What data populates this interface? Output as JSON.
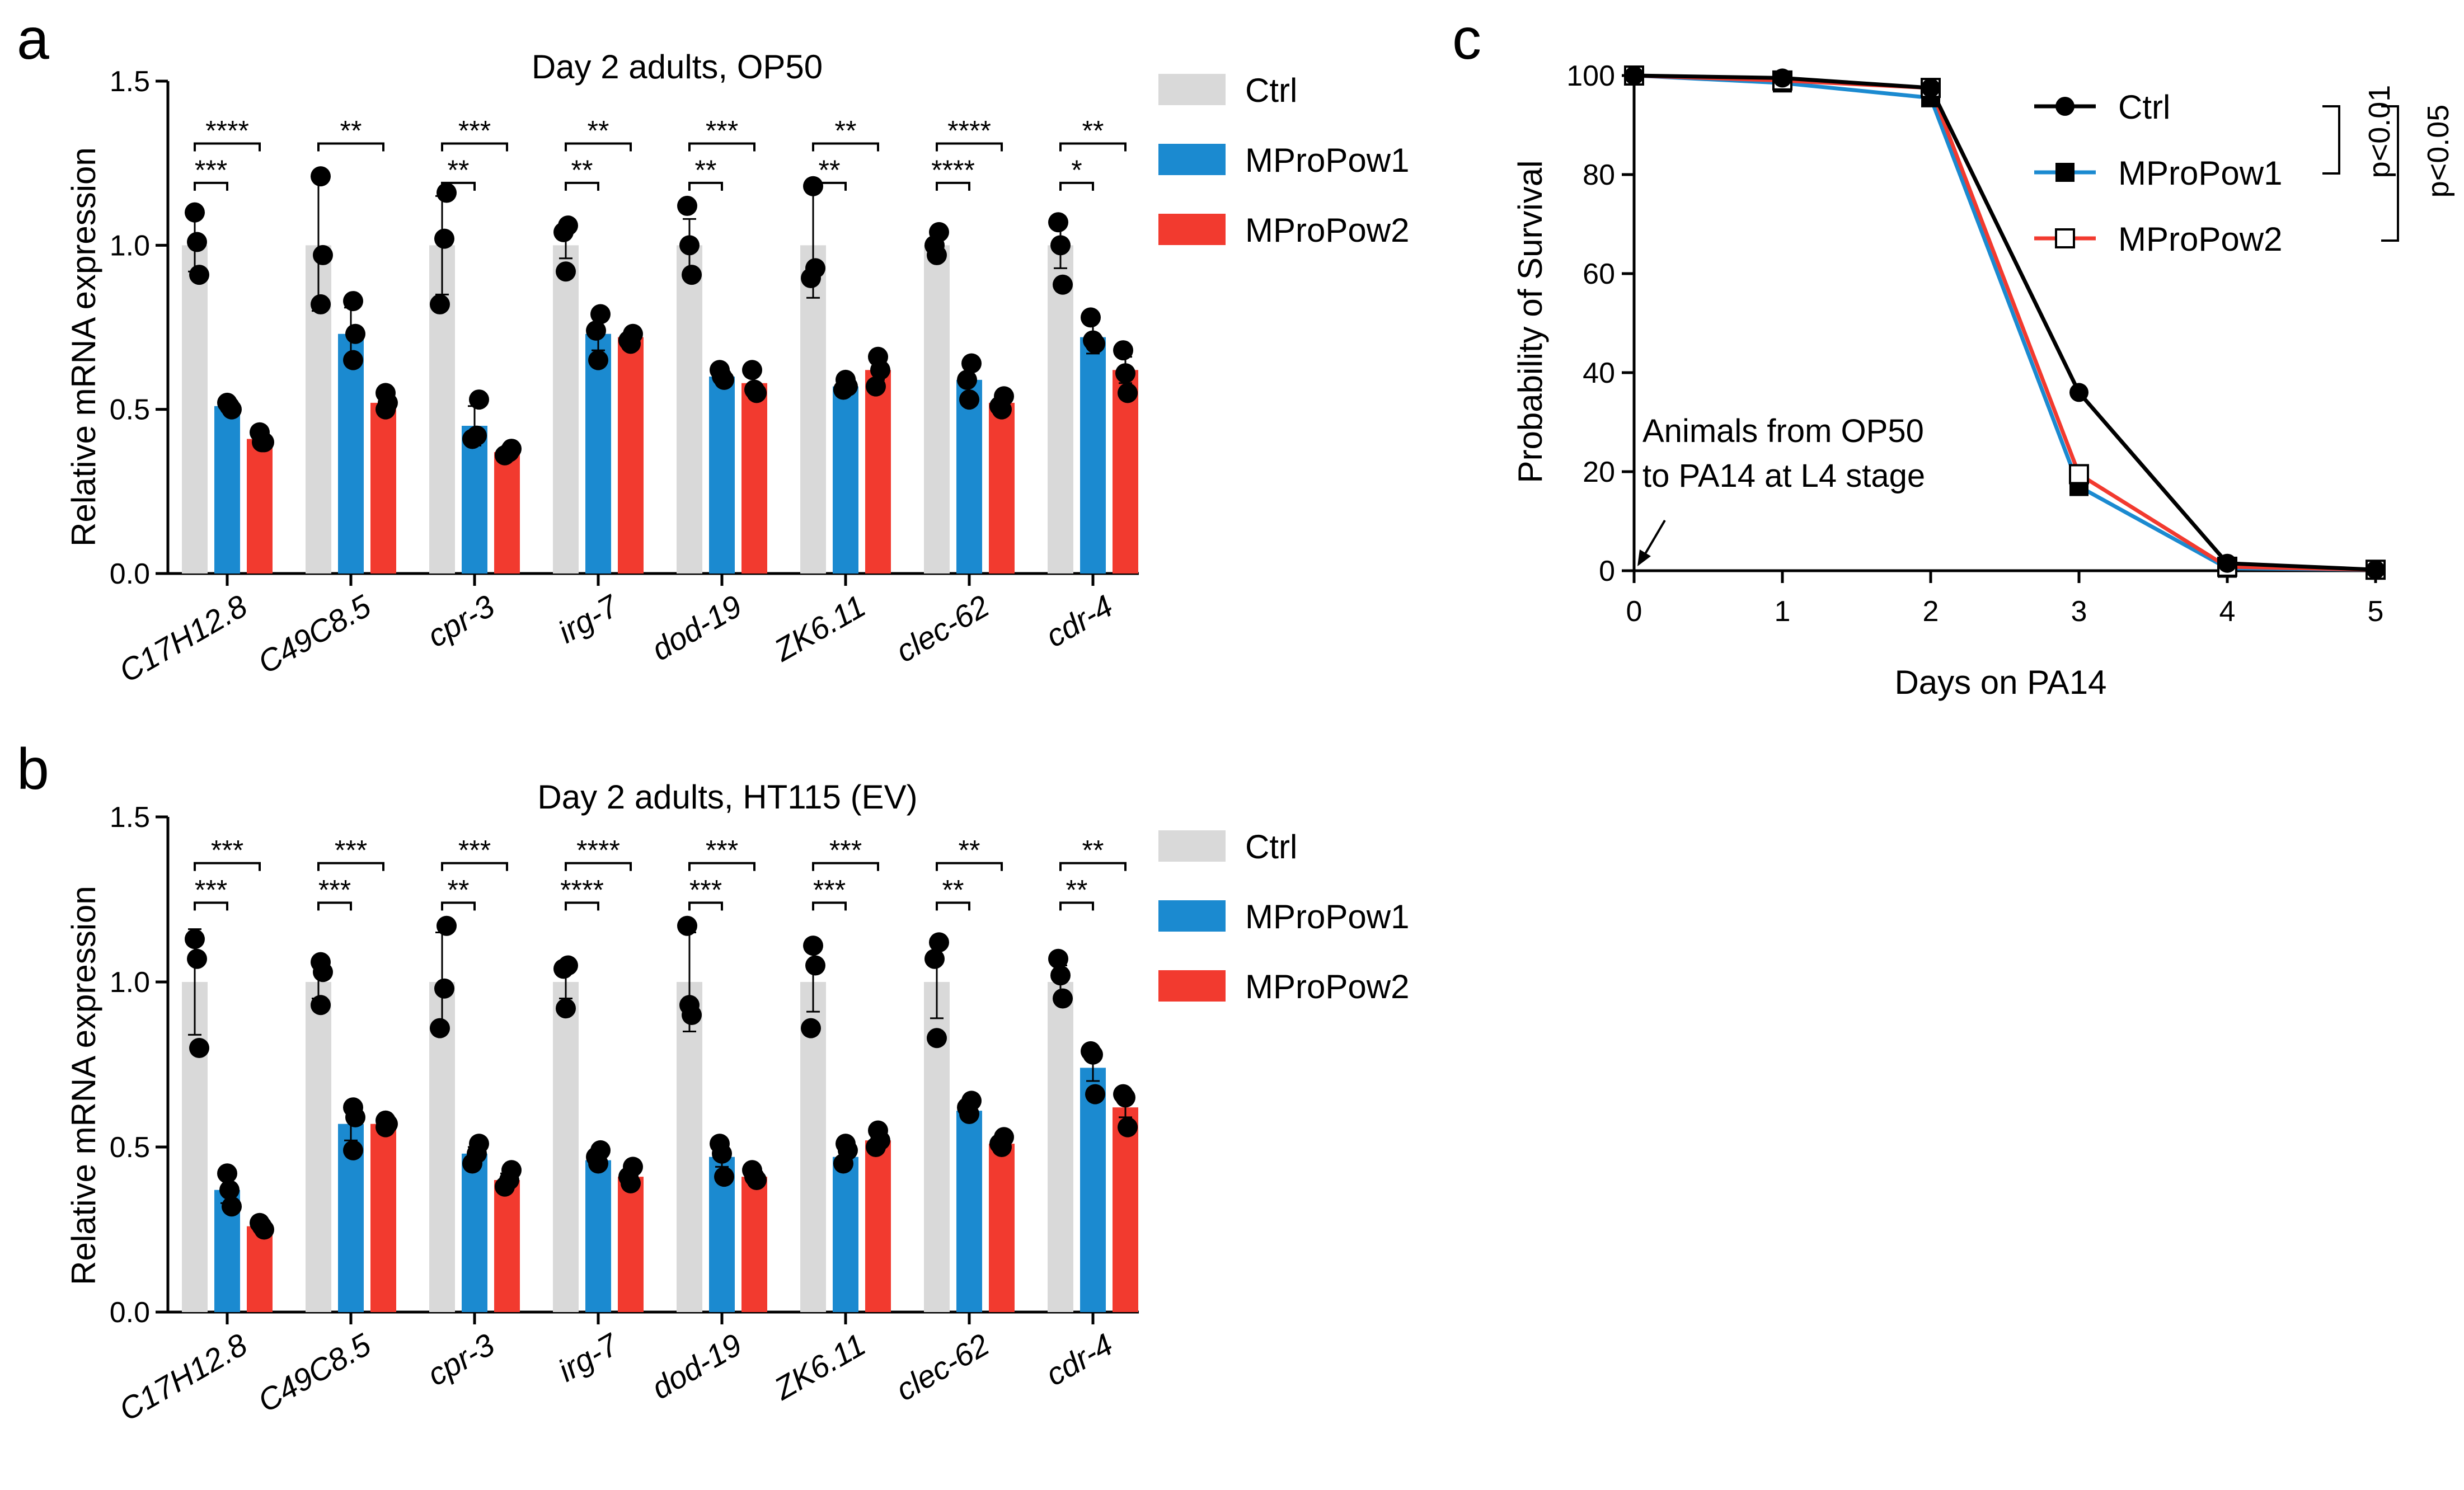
{
  "colors": {
    "ctrl": "#d9d9d9",
    "mpro1": "#1b8ad0",
    "mpro2": "#f23a2f",
    "axis": "#000000",
    "dot": "#000000"
  },
  "chart_data": [
    {
      "type": "bar",
      "panel": "a",
      "title": "Day 2 adults, OP50",
      "xlabel": "",
      "ylabel": "Relative mRNA expression",
      "ylim": [
        0,
        1.5
      ],
      "yticks": [
        "0.0",
        "0.5",
        "1.0",
        "1.5"
      ],
      "legend": [
        "Ctrl",
        "MProPow1",
        "MProPow2"
      ],
      "categories": [
        "C17H12.8",
        "C49C8.5",
        "cpr-3",
        "irg-7",
        "dod-19",
        "ZK6.11",
        "clec-62",
        "cdr-4"
      ],
      "series": [
        {
          "name": "Ctrl",
          "values": [
            1.0,
            1.0,
            1.0,
            1.0,
            1.0,
            1.0,
            1.0,
            1.0
          ],
          "err": [
            0.08,
            0.2,
            0.15,
            0.04,
            0.08,
            0.16,
            0.03,
            0.07
          ]
        },
        {
          "name": "MProPow1",
          "values": [
            0.51,
            0.73,
            0.45,
            0.73,
            0.6,
            0.57,
            0.59,
            0.72
          ],
          "err": [
            0.01,
            0.08,
            0.06,
            0.05,
            0.02,
            0.02,
            0.04,
            0.05
          ]
        },
        {
          "name": "MProPow2",
          "values": [
            0.41,
            0.52,
            0.37,
            0.72,
            0.58,
            0.62,
            0.52,
            0.62
          ],
          "err": [
            0.02,
            0.03,
            0.01,
            0.02,
            0.03,
            0.03,
            0.02,
            0.04
          ]
        }
      ],
      "points": [
        [
          [
            1.1,
            1.01,
            0.91
          ],
          [
            0.52,
            0.51,
            0.5
          ],
          [
            0.43,
            0.4,
            0.4
          ]
        ],
        [
          [
            1.21,
            0.97,
            0.82
          ],
          [
            0.83,
            0.73,
            0.65
          ],
          [
            0.55,
            0.52,
            0.5
          ]
        ],
        [
          [
            1.16,
            1.02,
            0.82
          ],
          [
            0.53,
            0.42,
            0.41
          ],
          [
            0.38,
            0.37,
            0.36
          ]
        ],
        [
          [
            1.06,
            1.04,
            0.92
          ],
          [
            0.79,
            0.74,
            0.65
          ],
          [
            0.73,
            0.71,
            0.7
          ]
        ],
        [
          [
            1.12,
            1.0,
            0.91
          ],
          [
            0.62,
            0.6,
            0.59
          ],
          [
            0.62,
            0.56,
            0.55
          ]
        ],
        [
          [
            1.18,
            0.93,
            0.9
          ],
          [
            0.59,
            0.57,
            0.56
          ],
          [
            0.66,
            0.62,
            0.57
          ]
        ],
        [
          [
            1.04,
            1.0,
            0.97
          ],
          [
            0.64,
            0.59,
            0.53
          ],
          [
            0.54,
            0.51,
            0.5
          ]
        ],
        [
          [
            1.07,
            1.0,
            0.88
          ],
          [
            0.78,
            0.71,
            0.7
          ],
          [
            0.68,
            0.61,
            0.55
          ]
        ]
      ],
      "significance": [
        {
          "near": "***",
          "far": "****"
        },
        {
          "near": "",
          "far": "**"
        },
        {
          "near": "**",
          "far": "***"
        },
        {
          "near": "**",
          "far": "**"
        },
        {
          "near": "**",
          "far": "***"
        },
        {
          "near": "**",
          "far": "**"
        },
        {
          "near": "****",
          "far": "****"
        },
        {
          "near": "*",
          "far": "**"
        }
      ]
    },
    {
      "type": "bar",
      "panel": "b",
      "title": "Day 2 adults, HT115 (EV)",
      "xlabel": "",
      "ylabel": "Relative mRNA expression",
      "ylim": [
        0,
        1.5
      ],
      "yticks": [
        "0.0",
        "0.5",
        "1.0",
        "1.5"
      ],
      "legend": [
        "Ctrl",
        "MProPow1",
        "MProPow2"
      ],
      "categories": [
        "C17H12.8",
        "C49C8.5",
        "cpr-3",
        "irg-7",
        "dod-19",
        "ZK6.11",
        "clec-62",
        "cdr-4"
      ],
      "series": [
        {
          "name": "Ctrl",
          "values": [
            1.0,
            1.0,
            1.0,
            1.0,
            1.0,
            1.0,
            1.0,
            1.0
          ],
          "err": [
            0.16,
            0.05,
            0.15,
            0.05,
            0.15,
            0.09,
            0.11,
            0.05
          ]
        },
        {
          "name": "MProPow1",
          "values": [
            0.37,
            0.57,
            0.48,
            0.46,
            0.47,
            0.47,
            0.61,
            0.74
          ],
          "err": [
            0.04,
            0.05,
            0.02,
            0.01,
            0.03,
            0.03,
            0.02,
            0.04
          ]
        },
        {
          "name": "MProPow2",
          "values": [
            0.26,
            0.57,
            0.4,
            0.41,
            0.41,
            0.52,
            0.51,
            0.62
          ],
          "err": [
            0.01,
            0.01,
            0.02,
            0.02,
            0.02,
            0.02,
            0.01,
            0.03
          ]
        }
      ],
      "points": [
        [
          [
            1.13,
            1.07,
            0.8
          ],
          [
            0.42,
            0.37,
            0.32
          ],
          [
            0.27,
            0.26,
            0.25
          ]
        ],
        [
          [
            1.06,
            1.03,
            0.93
          ],
          [
            0.62,
            0.59,
            0.49
          ],
          [
            0.58,
            0.57,
            0.56
          ]
        ],
        [
          [
            1.17,
            0.98,
            0.86
          ],
          [
            0.51,
            0.48,
            0.45
          ],
          [
            0.43,
            0.4,
            0.38
          ]
        ],
        [
          [
            1.05,
            1.04,
            0.92
          ],
          [
            0.49,
            0.47,
            0.45
          ],
          [
            0.44,
            0.41,
            0.39
          ]
        ],
        [
          [
            1.17,
            0.93,
            0.9
          ],
          [
            0.51,
            0.48,
            0.41
          ],
          [
            0.43,
            0.41,
            0.4
          ]
        ],
        [
          [
            1.11,
            1.05,
            0.86
          ],
          [
            0.51,
            0.49,
            0.45
          ],
          [
            0.55,
            0.52,
            0.5
          ]
        ],
        [
          [
            1.12,
            1.07,
            0.83
          ],
          [
            0.64,
            0.62,
            0.6
          ],
          [
            0.53,
            0.51,
            0.5
          ]
        ],
        [
          [
            1.07,
            1.02,
            0.95
          ],
          [
            0.79,
            0.78,
            0.66
          ],
          [
            0.66,
            0.65,
            0.56
          ]
        ]
      ],
      "significance": [
        {
          "near": "***",
          "far": "***"
        },
        {
          "near": "***",
          "far": "***"
        },
        {
          "near": "**",
          "far": "***"
        },
        {
          "near": "****",
          "far": "****"
        },
        {
          "near": "***",
          "far": "***"
        },
        {
          "near": "***",
          "far": "***"
        },
        {
          "near": "**",
          "far": "**"
        },
        {
          "near": "**",
          "far": "**"
        }
      ]
    },
    {
      "type": "line",
      "panel": "c",
      "title": "",
      "xlabel": "Days on PA14",
      "ylabel": "Probability of Survival",
      "xlim": [
        0,
        5
      ],
      "ylim": [
        0,
        100
      ],
      "xticks": [
        "0",
        "1",
        "2",
        "3",
        "4",
        "5"
      ],
      "yticks": [
        "0",
        "20",
        "40",
        "60",
        "80",
        "100"
      ],
      "x": [
        0,
        1,
        2,
        3,
        4,
        5
      ],
      "series": [
        {
          "name": "Ctrl",
          "marker": "circle",
          "values": [
            100,
            99.5,
            97.5,
            36,
            1.5,
            0.2
          ]
        },
        {
          "name": "MProPow1",
          "marker": "square-filled",
          "values": [
            100,
            98.5,
            95.5,
            17,
            0.5,
            0.2
          ]
        },
        {
          "name": "MProPow2",
          "marker": "square-open",
          "values": [
            100,
            99,
            97.5,
            19.5,
            0.8,
            0.2
          ]
        }
      ],
      "legend": [
        "Ctrl",
        "MProPow1",
        "MProPow2"
      ],
      "annotation": {
        "line1": "Animals from OP50",
        "line2": "to PA14 at L4 stage"
      },
      "pvalues": [
        "p<0.01",
        "p<0.05"
      ]
    }
  ]
}
